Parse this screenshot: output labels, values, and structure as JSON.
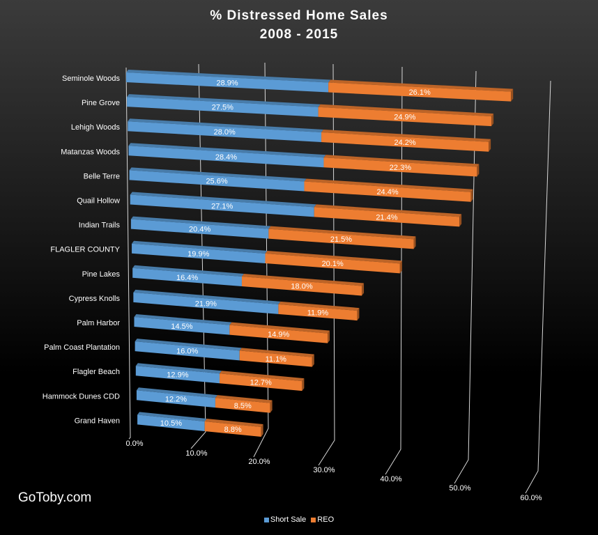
{
  "chart_data": {
    "type": "bar",
    "orientation": "horizontal",
    "stacked": true,
    "style": "3d",
    "title": "% Distressed Home Sales",
    "subtitle": "2008 - 2015",
    "categories": [
      "Seminole Woods",
      "Pine Grove",
      "Lehigh Woods",
      "Matanzas Woods",
      "Belle Terre",
      "Quail Hollow",
      "Indian Trails",
      "FLAGLER COUNTY",
      "Pine Lakes",
      "Cypress Knolls",
      "Palm Harbor",
      "Palm Coast Plantation",
      "Flagler Beach",
      "Hammock Dunes CDD",
      "Grand Haven"
    ],
    "series": [
      {
        "name": "Short Sale",
        "color": "#5b9bd5",
        "values": [
          28.9,
          27.5,
          28.0,
          28.4,
          25.6,
          27.1,
          20.4,
          19.9,
          16.4,
          21.9,
          14.5,
          16.0,
          12.9,
          12.2,
          10.5
        ]
      },
      {
        "name": "REO",
        "color": "#ed7d31",
        "values": [
          26.1,
          24.9,
          24.2,
          22.3,
          24.4,
          21.4,
          21.5,
          20.1,
          18.0,
          11.9,
          14.9,
          11.1,
          12.7,
          8.5,
          8.8
        ]
      }
    ],
    "xlim": [
      0,
      60
    ],
    "xticks": [
      "0.0%",
      "10.0%",
      "20.0%",
      "30.0%",
      "40.0%",
      "50.0%",
      "60.0%"
    ],
    "grid": true,
    "legend": "bottom"
  },
  "brand": "GoToby.com"
}
